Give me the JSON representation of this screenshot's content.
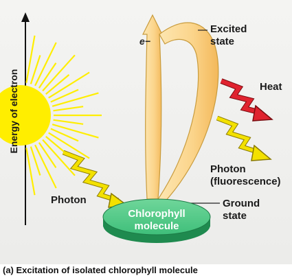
{
  "axis_label": "Energy of electron",
  "electron_symbol": "e−",
  "labels": {
    "excited_state": [
      "Excited",
      "state"
    ],
    "heat": "Heat",
    "photon_emitted": [
      "Photon",
      "(fluorescence)"
    ],
    "photon_absorbed": "Photon",
    "ground_state": [
      "Ground",
      "state"
    ],
    "molecule": [
      "Chlorophyll",
      "molecule"
    ]
  },
  "caption": "(a)  Excitation of isolated chlorophyll molecule",
  "colors": {
    "sun": "#ffee00",
    "photon": "#f3e100",
    "heat": "#e0232f",
    "molecule": "#3fbf7a",
    "arrow_fill": "#fbd890"
  }
}
